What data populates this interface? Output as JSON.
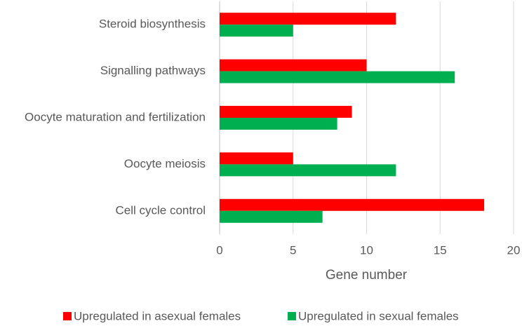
{
  "chart_data": {
    "type": "bar",
    "orientation": "horizontal",
    "categories": [
      "Steroid biosynthesis",
      "Signalling pathways",
      "Oocyte maturation and fertilization",
      "Oocyte meiosis",
      "Cell cycle control"
    ],
    "series": [
      {
        "name": "Upregulated in asexual females",
        "color": "#ff0000",
        "values": [
          12,
          10,
          9,
          5,
          18
        ]
      },
      {
        "name": "Upregulated in sexual females",
        "color": "#00b050",
        "values": [
          5,
          16,
          8,
          12,
          7
        ]
      }
    ],
    "x_label": "Gene number",
    "xlim": [
      0,
      20
    ],
    "xticks": [
      0,
      5,
      10,
      15,
      20
    ],
    "grid": true,
    "legend": "bottom"
  }
}
